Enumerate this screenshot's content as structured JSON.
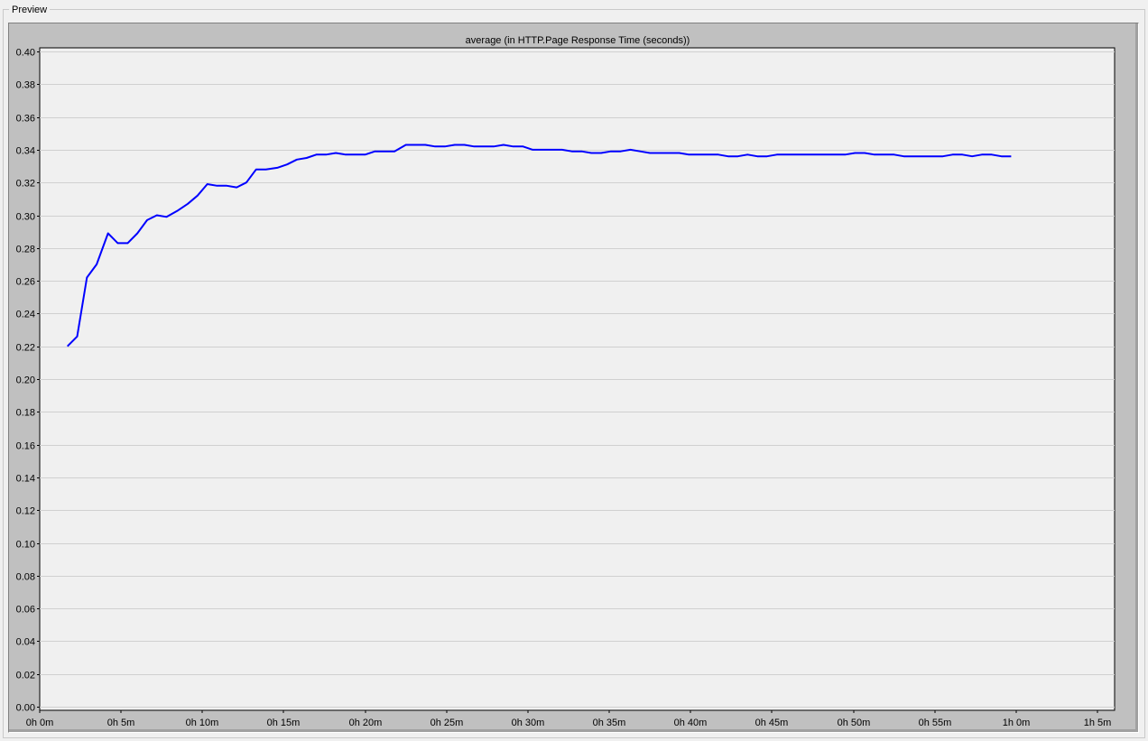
{
  "panel": {
    "label": "Preview"
  },
  "chart_data": {
    "type": "line",
    "title": "average (in HTTP.Page Response Time (seconds))",
    "xlabel": "",
    "ylabel": "",
    "xlim_minutes": [
      0,
      65
    ],
    "ylim": [
      0.0,
      0.4
    ],
    "y_ticks": [
      "0.00",
      "0.02",
      "0.04",
      "0.06",
      "0.08",
      "0.10",
      "0.12",
      "0.14",
      "0.16",
      "0.18",
      "0.20",
      "0.22",
      "0.24",
      "0.26",
      "0.28",
      "0.30",
      "0.32",
      "0.34",
      "0.36",
      "0.38",
      "0.40"
    ],
    "x_ticks": [
      "0h 0m",
      "0h 5m",
      "0h 10m",
      "0h 15m",
      "0h 20m",
      "0h 25m",
      "0h 30m",
      "0h 35m",
      "0h 40m",
      "0h 45m",
      "0h 50m",
      "0h 55m",
      "1h 0m",
      "1h 5m"
    ],
    "grid": true,
    "colors": {
      "line": "#0000ff",
      "plot_background": "#f0f0f0",
      "frame_background": "#c0c0c0",
      "grid": "#d0d0d0"
    },
    "series": [
      {
        "x": [
          1.7,
          2.3,
          2.9,
          3.5,
          4.2,
          4.8,
          5.4,
          6.0,
          6.6,
          7.2,
          7.8,
          8.5,
          9.1,
          9.7,
          10.3,
          10.9,
          11.5,
          12.1,
          12.7,
          13.3,
          13.9,
          14.6,
          15.2,
          15.8,
          16.4,
          17.0,
          17.6,
          18.2,
          18.8,
          19.4,
          20.0,
          20.6,
          21.2,
          21.8,
          22.5,
          23.1,
          23.7,
          24.3,
          24.9,
          25.5,
          26.1,
          26.7,
          27.3,
          27.9,
          28.5,
          29.1,
          29.7,
          30.3,
          30.9,
          31.5,
          32.1,
          32.7,
          33.3,
          33.9,
          34.5,
          35.1,
          35.7,
          36.3,
          36.9,
          37.5,
          38.1,
          38.7,
          39.3,
          39.9,
          40.5,
          41.1,
          41.7,
          42.3,
          42.9,
          43.5,
          44.1,
          44.7,
          45.3,
          45.9,
          46.5,
          47.1,
          47.7,
          48.3,
          48.9,
          49.5,
          50.1,
          50.7,
          51.3,
          51.9,
          52.5,
          53.1,
          53.7,
          54.3,
          54.9,
          55.5,
          56.1,
          56.7,
          57.3,
          57.9,
          58.5,
          59.1,
          59.7
        ],
        "y": [
          0.22,
          0.226,
          0.262,
          0.27,
          0.289,
          0.283,
          0.283,
          0.289,
          0.297,
          0.3,
          0.299,
          0.303,
          0.307,
          0.312,
          0.319,
          0.318,
          0.318,
          0.317,
          0.32,
          0.328,
          0.328,
          0.329,
          0.331,
          0.334,
          0.335,
          0.337,
          0.337,
          0.338,
          0.337,
          0.337,
          0.337,
          0.339,
          0.339,
          0.339,
          0.343,
          0.343,
          0.343,
          0.342,
          0.342,
          0.343,
          0.343,
          0.342,
          0.342,
          0.342,
          0.343,
          0.342,
          0.342,
          0.34,
          0.34,
          0.34,
          0.34,
          0.339,
          0.339,
          0.338,
          0.338,
          0.339,
          0.339,
          0.34,
          0.339,
          0.338,
          0.338,
          0.338,
          0.338,
          0.337,
          0.337,
          0.337,
          0.337,
          0.336,
          0.336,
          0.337,
          0.336,
          0.336,
          0.337,
          0.337,
          0.337,
          0.337,
          0.337,
          0.337,
          0.337,
          0.337,
          0.338,
          0.338,
          0.337,
          0.337,
          0.337,
          0.336,
          0.336,
          0.336,
          0.336,
          0.336,
          0.337,
          0.337,
          0.336,
          0.337,
          0.337,
          0.336,
          0.336
        ]
      }
    ]
  }
}
